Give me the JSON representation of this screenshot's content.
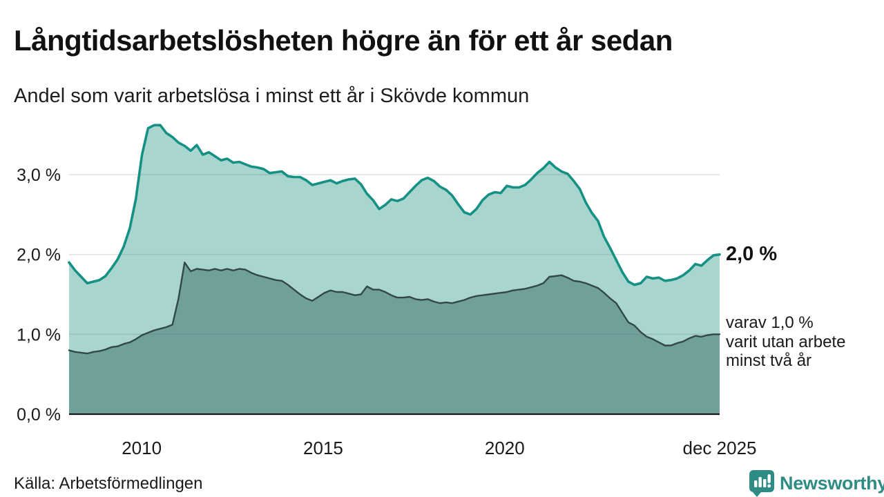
{
  "header": {
    "title": "Långtidsarbetslösheten högre än för ett år sedan",
    "subtitle": "Andel som varit arbetslösa i minst ett år i Skövde kommun"
  },
  "annotations": {
    "total_end_label": "2,0 %",
    "two_year_lines": [
      "varav 1,0 %",
      "varit utan arbete",
      "minst två år"
    ]
  },
  "footer": {
    "source": "Källa: Arbetsförmedlingen",
    "logo_text": "Newsworthy"
  },
  "colors": {
    "line_total": "#149184",
    "fill_total": "#a8d5ce",
    "line_two_year": "#344744",
    "fill_two_year": "#6fa09a",
    "gridline": "rgba(105,112,130,0.22)",
    "axis_line": "#1a1a1a",
    "logo_teal": "#2e8c85"
  },
  "chart_data": {
    "type": "area",
    "title": "Långtidsarbetslösheten högre än för ett år sedan",
    "subtitle": "Andel som varit arbetslösa i minst ett år i Skövde kommun",
    "x_start_year": 2008,
    "x_step_months": 2,
    "x_range_years": [
      2008.0,
      2025.92
    ],
    "ylim": [
      0,
      3.8
    ],
    "grid": true,
    "legend_position": "right-annotations",
    "yticks": [
      {
        "label": "0,0 %",
        "value": 0
      },
      {
        "label": "1,0 %",
        "value": 1
      },
      {
        "label": "2,0 %",
        "value": 2
      },
      {
        "label": "3,0 %",
        "value": 3
      }
    ],
    "xticks": [
      {
        "label": "2010",
        "year": 2010
      },
      {
        "label": "2015",
        "year": 2015
      },
      {
        "label": "2020",
        "year": 2020
      },
      {
        "label": "dec 2025",
        "year": 2025.92
      }
    ],
    "series": [
      {
        "name": "arbetslösa minst ett år",
        "end_value": 2.0,
        "end_value_label": "2,0 %",
        "values": [
          1.9,
          1.8,
          1.72,
          1.64,
          1.66,
          1.68,
          1.73,
          1.83,
          1.94,
          2.1,
          2.33,
          2.7,
          3.25,
          3.58,
          3.62,
          3.62,
          3.52,
          3.47,
          3.4,
          3.36,
          3.3,
          3.37,
          3.25,
          3.28,
          3.23,
          3.18,
          3.2,
          3.15,
          3.16,
          3.13,
          3.1,
          3.09,
          3.07,
          3.02,
          3.03,
          3.04,
          2.98,
          2.97,
          2.97,
          2.93,
          2.87,
          2.89,
          2.91,
          2.93,
          2.89,
          2.92,
          2.94,
          2.95,
          2.88,
          2.76,
          2.68,
          2.57,
          2.62,
          2.69,
          2.67,
          2.7,
          2.78,
          2.86,
          2.93,
          2.96,
          2.92,
          2.85,
          2.81,
          2.74,
          2.63,
          2.53,
          2.5,
          2.57,
          2.68,
          2.75,
          2.78,
          2.77,
          2.86,
          2.84,
          2.84,
          2.87,
          2.94,
          3.02,
          3.08,
          3.16,
          3.09,
          3.04,
          3.01,
          2.92,
          2.82,
          2.65,
          2.52,
          2.42,
          2.22,
          2.08,
          1.93,
          1.78,
          1.66,
          1.62,
          1.64,
          1.72,
          1.7,
          1.71,
          1.67,
          1.68,
          1.7,
          1.74,
          1.8,
          1.88,
          1.86,
          1.93,
          1.99,
          2.0
        ]
      },
      {
        "name": "varav utan arbete minst två år",
        "end_value": 1.0,
        "end_value_label": "varav 1,0 % varit utan arbete minst två år",
        "values": [
          0.8,
          0.78,
          0.77,
          0.76,
          0.78,
          0.79,
          0.81,
          0.84,
          0.85,
          0.88,
          0.9,
          0.94,
          0.99,
          1.02,
          1.05,
          1.07,
          1.09,
          1.12,
          1.45,
          1.9,
          1.79,
          1.82,
          1.81,
          1.8,
          1.82,
          1.8,
          1.82,
          1.8,
          1.82,
          1.81,
          1.77,
          1.74,
          1.72,
          1.7,
          1.68,
          1.67,
          1.62,
          1.56,
          1.5,
          1.45,
          1.42,
          1.47,
          1.52,
          1.55,
          1.53,
          1.53,
          1.51,
          1.49,
          1.5,
          1.6,
          1.56,
          1.56,
          1.53,
          1.49,
          1.46,
          1.46,
          1.47,
          1.44,
          1.43,
          1.44,
          1.41,
          1.39,
          1.4,
          1.39,
          1.41,
          1.43,
          1.46,
          1.48,
          1.49,
          1.5,
          1.51,
          1.52,
          1.53,
          1.55,
          1.56,
          1.57,
          1.59,
          1.61,
          1.64,
          1.72,
          1.73,
          1.74,
          1.71,
          1.67,
          1.66,
          1.64,
          1.61,
          1.58,
          1.52,
          1.45,
          1.39,
          1.27,
          1.15,
          1.11,
          1.03,
          0.97,
          0.94,
          0.9,
          0.86,
          0.86,
          0.89,
          0.91,
          0.95,
          0.98,
          0.97,
          0.99,
          1.0,
          1.0
        ]
      }
    ]
  }
}
